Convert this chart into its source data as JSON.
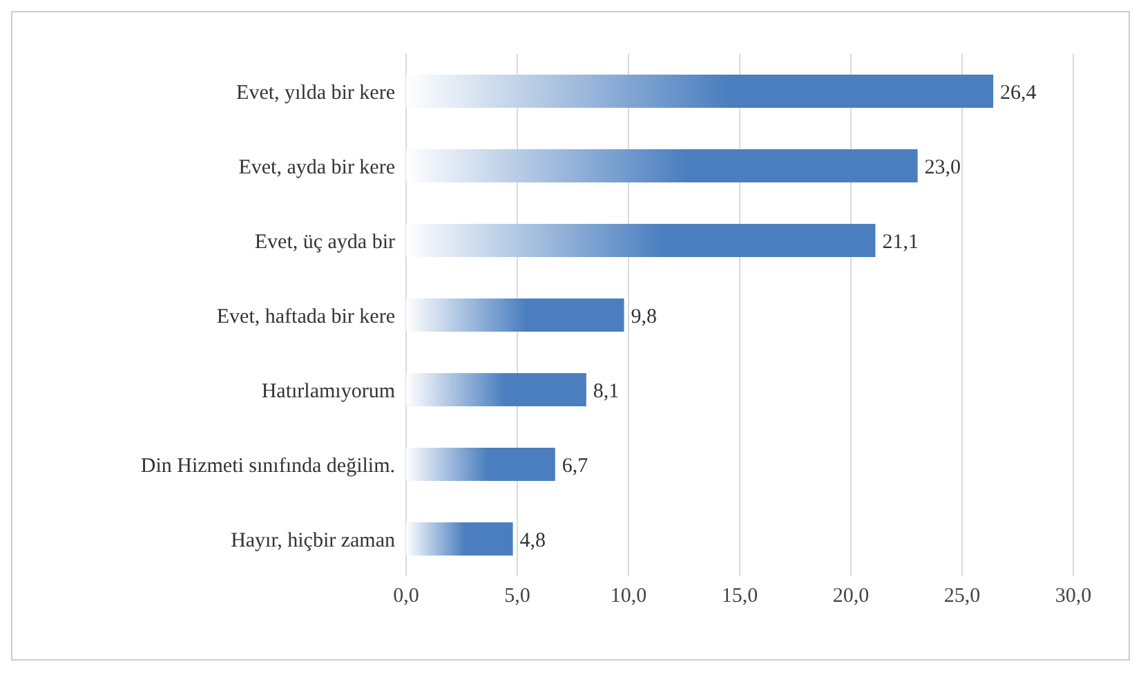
{
  "chart_data": {
    "type": "bar",
    "orientation": "horizontal",
    "categories": [
      "Evet, yılda bir kere",
      "Evet, ayda bir kere",
      "Evet, üç ayda bir",
      "Evet, haftada bir kere",
      "Hatırlamıyorum",
      "Din Hizmeti sınıfında değilim.",
      "Hayır, hiçbir zaman"
    ],
    "values": [
      26.4,
      23.0,
      21.1,
      9.8,
      8.1,
      6.7,
      4.8
    ],
    "value_labels": [
      "26,4",
      "23,0",
      "21,1",
      "9,8",
      "8,1",
      "6,7",
      "4,8"
    ],
    "color": "#4a7ebf",
    "xlim": [
      0,
      30
    ],
    "xticks": [
      {
        "value": 0,
        "label": "0,0"
      },
      {
        "value": 5,
        "label": "5,0"
      },
      {
        "value": 10,
        "label": "10,0"
      },
      {
        "value": 15,
        "label": "15,0"
      },
      {
        "value": 20,
        "label": "20,0"
      },
      {
        "value": 25,
        "label": "25,0"
      },
      {
        "value": 30,
        "label": "30,0"
      }
    ],
    "grid": "x"
  }
}
